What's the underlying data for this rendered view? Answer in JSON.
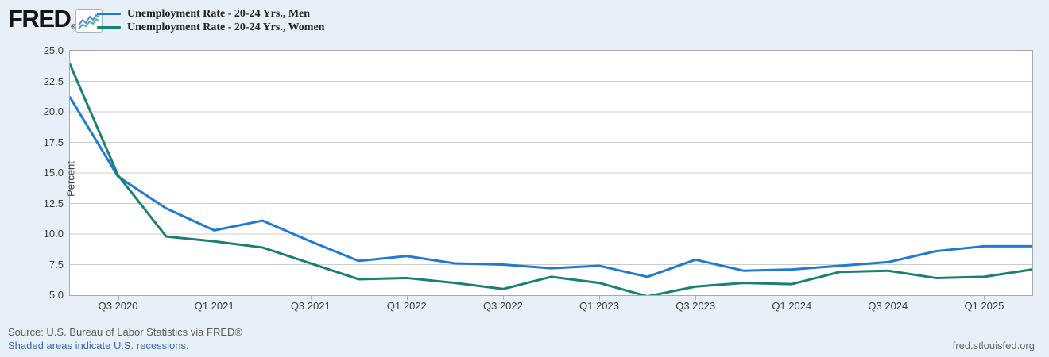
{
  "logo": {
    "text": "FRED",
    "reg": "®"
  },
  "legend": {
    "items": [
      {
        "label": "Unemployment Rate - 20-24 Yrs., Men",
        "color": "#1f7ad4"
      },
      {
        "label": "Unemployment Rate - 20-24 Yrs., Women",
        "color": "#1a8074"
      }
    ]
  },
  "axes": {
    "y_title": "Percent"
  },
  "footer": {
    "source": "Source: U.S. Bureau of Labor Statistics via FRED®",
    "recessions": "Shaded areas indicate U.S. recessions.",
    "site": "fred.stlouisfed.org"
  },
  "chart_data": {
    "type": "line",
    "title": "",
    "ylabel": "Percent",
    "ylim": [
      5.0,
      25.0
    ],
    "ytick_step": 2.5,
    "yticks": [
      "25.0",
      "22.5",
      "20.0",
      "17.5",
      "15.0",
      "12.5",
      "10.0",
      "7.5",
      "5.0"
    ],
    "grid": "horizontal",
    "legend_position": "top-left",
    "x": [
      "Q2 2020",
      "Q3 2020",
      "Q4 2020",
      "Q1 2021",
      "Q2 2021",
      "Q3 2021",
      "Q4 2021",
      "Q1 2022",
      "Q2 2022",
      "Q3 2022",
      "Q4 2022",
      "Q1 2023",
      "Q2 2023",
      "Q3 2023",
      "Q4 2023",
      "Q1 2024",
      "Q2 2024",
      "Q3 2024",
      "Q4 2024",
      "Q1 2025",
      "Q2 2025"
    ],
    "xtick_labels": [
      "Q3 2020",
      "Q1 2021",
      "Q3 2021",
      "Q1 2022",
      "Q3 2022",
      "Q1 2023",
      "Q3 2023",
      "Q1 2024",
      "Q3 2024",
      "Q1 2025"
    ],
    "xtick_indices": [
      1,
      3,
      5,
      7,
      9,
      11,
      13,
      15,
      17,
      19
    ],
    "series": [
      {
        "name": "Unemployment Rate - 20-24 Yrs., Men",
        "color": "#1f7ad4",
        "values": [
          21.2,
          14.7,
          12.1,
          10.3,
          11.1,
          9.4,
          7.8,
          8.2,
          7.6,
          7.5,
          7.2,
          7.4,
          6.5,
          7.9,
          7.0,
          7.1,
          7.4,
          7.7,
          8.6,
          9.0,
          9.0
        ]
      },
      {
        "name": "Unemployment Rate - 20-24 Yrs., Women",
        "color": "#1a8074",
        "values": [
          23.9,
          14.8,
          9.8,
          9.4,
          8.9,
          7.6,
          6.3,
          6.4,
          6.0,
          5.5,
          6.5,
          6.0,
          4.9,
          5.7,
          6.0,
          5.9,
          6.9,
          7.0,
          6.4,
          6.5,
          7.1
        ]
      }
    ]
  }
}
